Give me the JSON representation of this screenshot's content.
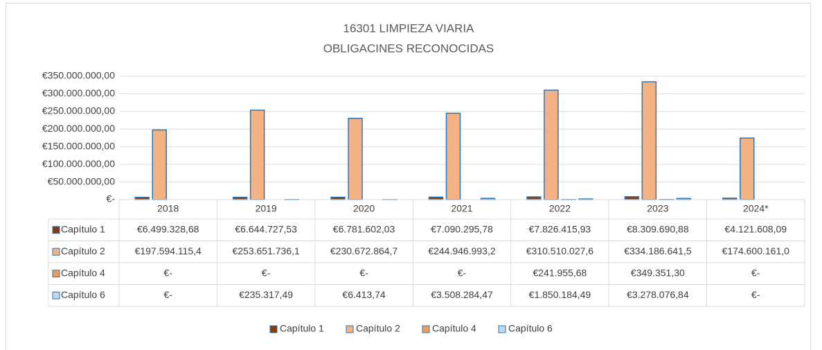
{
  "chart_data": {
    "type": "bar",
    "title": "16301 LIMPIEZA VIARIA",
    "subtitle": "OBLIGACINES RECONOCIDAS",
    "categories": [
      "2018",
      "2019",
      "2020",
      "2021",
      "2022",
      "2023",
      "2024*"
    ],
    "series": [
      {
        "name": "Capítulo 1",
        "color": "#843c0c",
        "values": [
          6499328.68,
          6644727.53,
          6781602.03,
          7090295.78,
          7826415.93,
          8309690.88,
          4121608.09
        ],
        "value_labels": [
          "€6.499.328,68",
          "€6.644.727,53",
          "€6.781.602,03",
          "€7.090.295,78",
          "€7.826.415,93",
          "€8.309.690,88",
          "€4.121.608,09"
        ]
      },
      {
        "name": "Capítulo 2",
        "color": "#f4b183",
        "values": [
          197594115.4,
          253651736.1,
          230672864.7,
          244946993.2,
          310510027.6,
          334186641.5,
          174600161.0
        ],
        "value_labels": [
          "€197.594.115,4",
          "€253.651.736,1",
          "€230.672.864,7",
          "€244.946.993,2",
          "€310.510.027,6",
          "€334.186.641,5",
          "€174.600.161,0"
        ]
      },
      {
        "name": "Capítulo 4",
        "color": "#ed9a5f",
        "values": [
          0,
          0,
          0,
          0,
          241955.68,
          349351.3,
          0
        ],
        "value_labels": [
          "€-",
          "€-",
          "€-",
          "€-",
          "€241.955,68",
          "€349.351,30",
          "€-"
        ]
      },
      {
        "name": "Capítulo 6",
        "color": "#bdd7ee",
        "values": [
          0,
          235317.49,
          6413.74,
          3508284.47,
          1850184.49,
          3278076.84,
          0
        ],
        "value_labels": [
          "€-",
          "€235.317,49",
          "€6.413,74",
          "€3.508.284,47",
          "€1.850.184,49",
          "€3.278.076,84",
          "€-"
        ]
      }
    ],
    "ylim": [
      0,
      350000000
    ],
    "yticks": [
      {
        "value": 0,
        "label": "€-"
      },
      {
        "value": 50000000,
        "label": "€50.000.000,00"
      },
      {
        "value": 100000000,
        "label": "€100.000.000,00"
      },
      {
        "value": 150000000,
        "label": "€150.000.000,00"
      },
      {
        "value": 200000000,
        "label": "€200.000.000,00"
      },
      {
        "value": 250000000,
        "label": "€250.000.000,00"
      },
      {
        "value": 300000000,
        "label": "€300.000.000,00"
      },
      {
        "value": 350000000,
        "label": "€350.000.000,00"
      }
    ],
    "grid": true,
    "bar_outline": "#2e75b6",
    "legend": "bottom"
  }
}
